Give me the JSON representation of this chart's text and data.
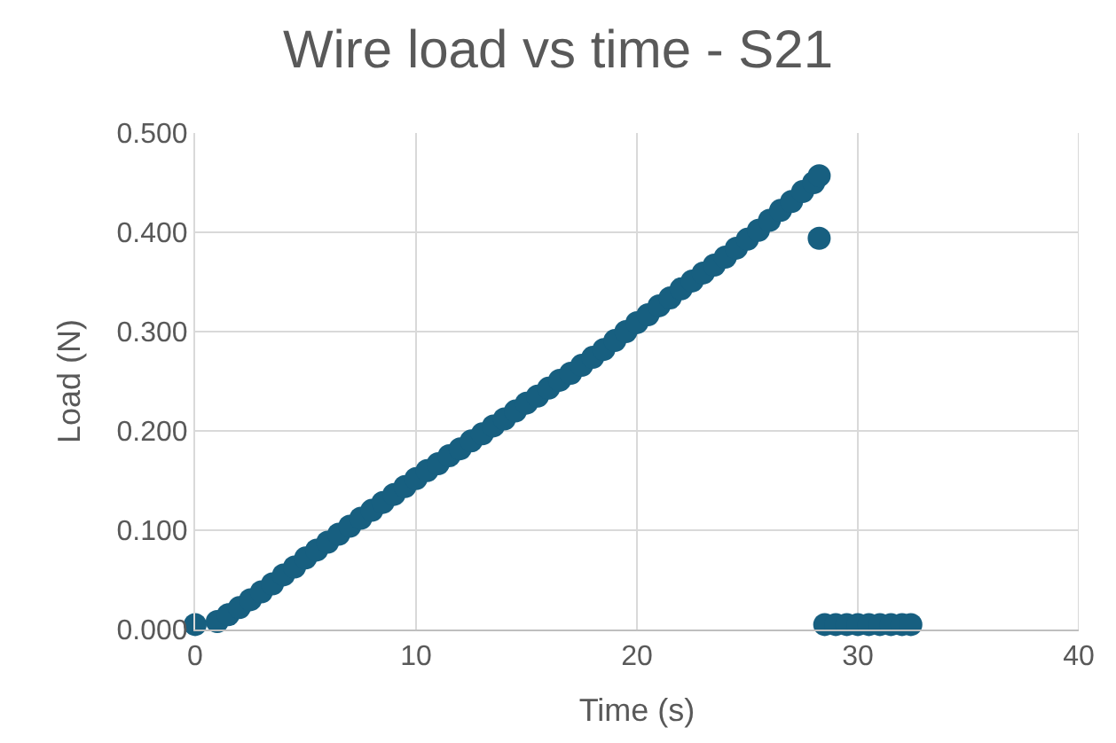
{
  "chart_data": {
    "type": "scatter",
    "title": "Wire load vs time - S21",
    "xlabel": "Time (s)",
    "ylabel": "Load (N)",
    "series": [
      {
        "color": "#175f80",
        "x": [
          0,
          1,
          1.5,
          2,
          2.5,
          3,
          3.5,
          4,
          4.5,
          5,
          5.5,
          6,
          6.5,
          7,
          7.5,
          8,
          8.5,
          9,
          9.5,
          10,
          10.5,
          11,
          11.5,
          12,
          12.5,
          13,
          13.5,
          14,
          14.5,
          15,
          15.5,
          16,
          16.5,
          17,
          17.5,
          18,
          18.5,
          19,
          19.5,
          20,
          20.5,
          21,
          21.5,
          22,
          22.5,
          23,
          23.5,
          24,
          24.5,
          25,
          25.5,
          26,
          26.5,
          27,
          27.5,
          28,
          28.25,
          28.25,
          28.5,
          29,
          29.5,
          30,
          30.5,
          31,
          31.5,
          32,
          32.4
        ],
        "values": [
          0.005,
          0.008,
          0.015,
          0.022,
          0.03,
          0.038,
          0.046,
          0.055,
          0.063,
          0.072,
          0.08,
          0.088,
          0.096,
          0.104,
          0.112,
          0.12,
          0.128,
          0.136,
          0.144,
          0.152,
          0.16,
          0.167,
          0.175,
          0.182,
          0.19,
          0.197,
          0.205,
          0.212,
          0.22,
          0.228,
          0.235,
          0.243,
          0.251,
          0.258,
          0.266,
          0.274,
          0.282,
          0.291,
          0.3,
          0.309,
          0.317,
          0.326,
          0.334,
          0.343,
          0.351,
          0.359,
          0.367,
          0.375,
          0.384,
          0.393,
          0.402,
          0.412,
          0.422,
          0.431,
          0.441,
          0.45,
          0.457,
          0.394,
          0.005,
          0.005,
          0.005,
          0.005,
          0.005,
          0.005,
          0.005,
          0.005,
          0.005
        ]
      }
    ],
    "xlim": [
      0,
      40
    ],
    "xticks": [
      0,
      10,
      20,
      30,
      40
    ],
    "ylim": [
      0,
      0.5
    ],
    "yticks": [
      {
        "value": 0,
        "label": "0.000"
      },
      {
        "value": 0.1,
        "label": "0.100"
      },
      {
        "value": 0.2,
        "label": "0.200"
      },
      {
        "value": 0.3,
        "label": "0.300"
      },
      {
        "value": 0.4,
        "label": "0.400"
      },
      {
        "value": 0.5,
        "label": "0.500"
      }
    ],
    "grid": true,
    "marker": "circle"
  }
}
